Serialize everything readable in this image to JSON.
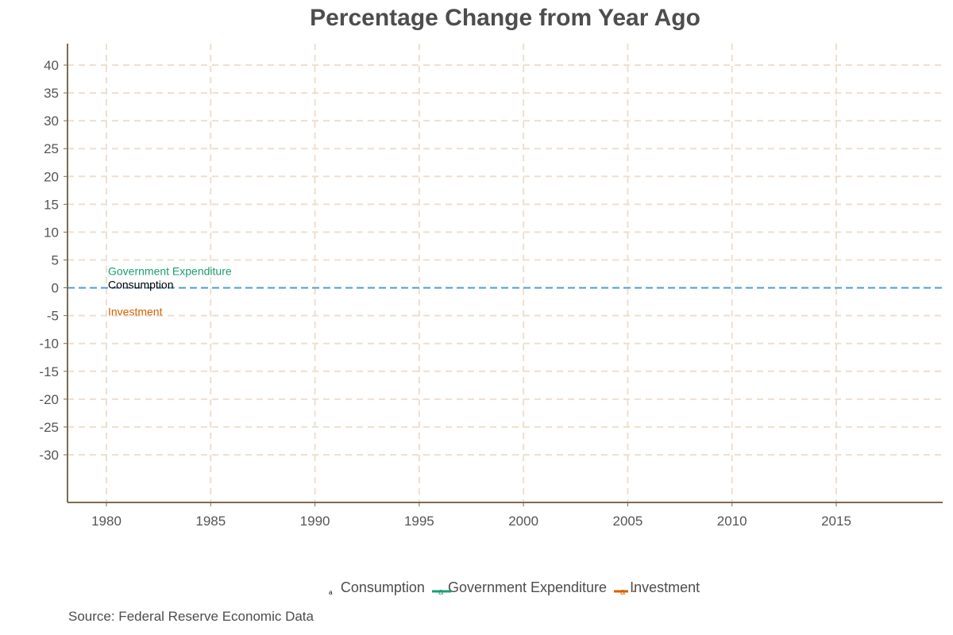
{
  "chart_data": {
    "type": "line",
    "title": "Percentage Change from Year Ago",
    "xlabel": "",
    "ylabel": "",
    "x_ticks": [
      "1980",
      "1985",
      "1990",
      "1995",
      "2000",
      "2005",
      "2010",
      "2015"
    ],
    "y_ticks": [
      "40",
      "35",
      "30",
      "25",
      "20",
      "15",
      "10",
      "5",
      "0",
      "-5",
      "-10",
      "-15",
      "-20",
      "-25",
      "-30"
    ],
    "xlim": [
      1978,
      2020
    ],
    "ylim": [
      -38,
      44
    ],
    "grid": true,
    "zero_line": 0,
    "legend_position": "bottom",
    "series": [
      {
        "name": "Consumption",
        "color": "#000000",
        "values": []
      },
      {
        "name": "Government Expenditure",
        "color": "#1b9e77",
        "values": []
      },
      {
        "name": "Investment",
        "color": "#d95f02",
        "values": []
      }
    ],
    "annotations": [
      {
        "text": "Government Expenditure",
        "x": 1980,
        "y": 3,
        "color": "#1b9e77"
      },
      {
        "text": "Consumption",
        "x": 1980,
        "y": 0.6,
        "color": "#000000"
      },
      {
        "text": "Investment",
        "x": 1980,
        "y": -4.3,
        "color": "#d95f02"
      }
    ],
    "caption": "Source: Federal Reserve Economic Data"
  },
  "colors": {
    "axis": "#7f6a50",
    "grid": "#eedfcf",
    "zero_line": "#4f9fcf"
  }
}
